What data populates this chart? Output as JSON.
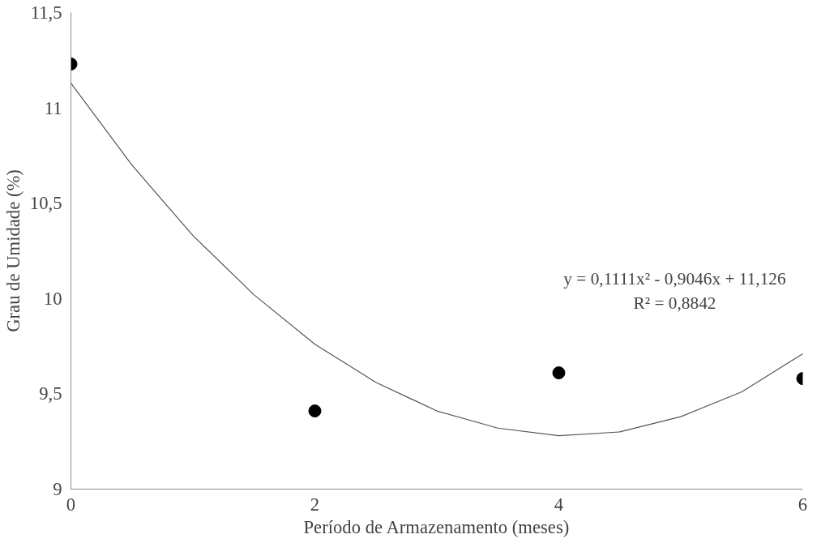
{
  "chart_data": {
    "type": "scatter",
    "xlabel": "Período de Armazenamento (meses)",
    "ylabel": "Grau de Umidade (%)",
    "x": [
      0,
      2,
      4,
      6
    ],
    "series": [
      {
        "color": "#000000",
        "marker": "circle",
        "values": [
          11.23,
          9.41,
          9.61,
          9.58
        ]
      },
      {
        "type": "line",
        "color": "#555555",
        "line_style": "solid",
        "x": [
          0,
          0.5,
          1,
          1.5,
          2,
          2.5,
          3,
          3.5,
          4,
          4.5,
          5,
          5.5,
          6
        ],
        "values": [
          11.13,
          10.7,
          10.33,
          10.02,
          9.76,
          9.56,
          9.41,
          9.32,
          9.28,
          9.3,
          9.38,
          9.51,
          9.71
        ]
      }
    ],
    "xlim": [
      0,
      6
    ],
    "ylim": [
      9,
      11.5
    ],
    "xticks": [
      0,
      2,
      4,
      6
    ],
    "yticks": [
      {
        "value": 9,
        "label": "9"
      },
      {
        "value": 9.5,
        "label": "9,5"
      },
      {
        "value": 10,
        "label": "10"
      },
      {
        "value": 10.5,
        "label": "10,5"
      },
      {
        "value": 11,
        "label": "11"
      },
      {
        "value": 11.5,
        "label": "11,5"
      }
    ],
    "grid": false,
    "annotations": [
      "y = 0,1111x² - 0,9046x + 11,126\nR² = 0,8842"
    ]
  }
}
